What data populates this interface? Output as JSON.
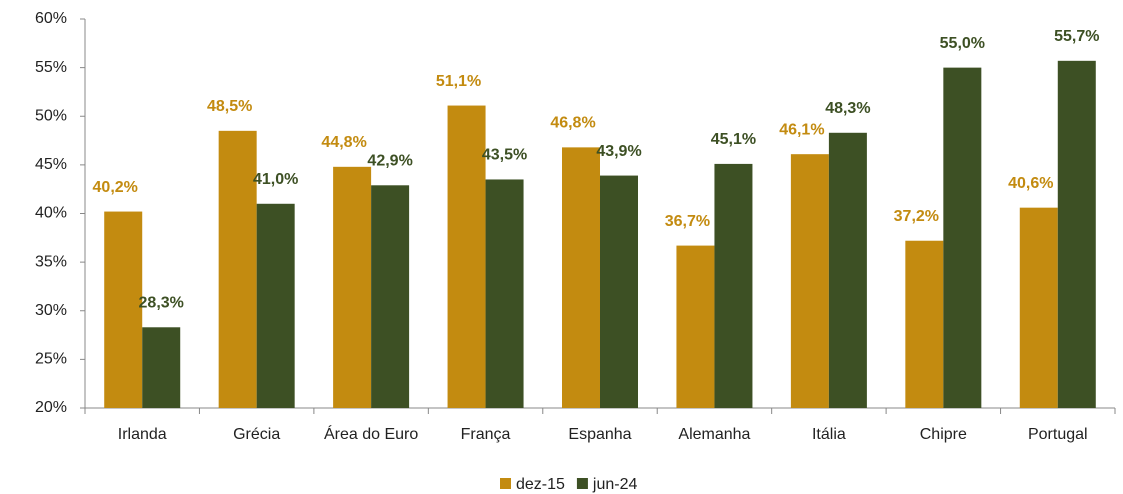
{
  "chart_data": {
    "type": "bar",
    "categories": [
      "Irlanda",
      "Grécia",
      "Área do Euro",
      "França",
      "Espanha",
      "Alemanha",
      "Itália",
      "Chipre",
      "Portugal"
    ],
    "series": [
      {
        "name": "dez-15",
        "color": "#c38b10",
        "values": [
          40.2,
          48.5,
          44.8,
          51.1,
          46.8,
          36.7,
          46.1,
          37.2,
          40.6
        ],
        "value_labels": [
          "40,2%",
          "48,5%",
          "44,8%",
          "51,1%",
          "46,8%",
          "36,7%",
          "46,1%",
          "37,2%",
          "40,6%"
        ]
      },
      {
        "name": "jun-24",
        "color": "#3d5024",
        "values": [
          28.3,
          41.0,
          42.9,
          43.5,
          43.9,
          45.1,
          48.3,
          55.0,
          55.7
        ],
        "value_labels": [
          "28,3%",
          "41,0%",
          "42,9%",
          "43,5%",
          "43,9%",
          "45,1%",
          "48,3%",
          "55,0%",
          "55,7%"
        ]
      }
    ],
    "ylim": [
      20,
      60
    ],
    "yticks": [
      {
        "value": 20,
        "label": "20%"
      },
      {
        "value": 25,
        "label": "25%"
      },
      {
        "value": 30,
        "label": "30%"
      },
      {
        "value": 35,
        "label": "35%"
      },
      {
        "value": 40,
        "label": "40%"
      },
      {
        "value": 45,
        "label": "45%"
      },
      {
        "value": 50,
        "label": "50%"
      },
      {
        "value": 55,
        "label": "55%"
      },
      {
        "value": 60,
        "label": "60%"
      }
    ],
    "legend": "bottom",
    "grid": false
  }
}
